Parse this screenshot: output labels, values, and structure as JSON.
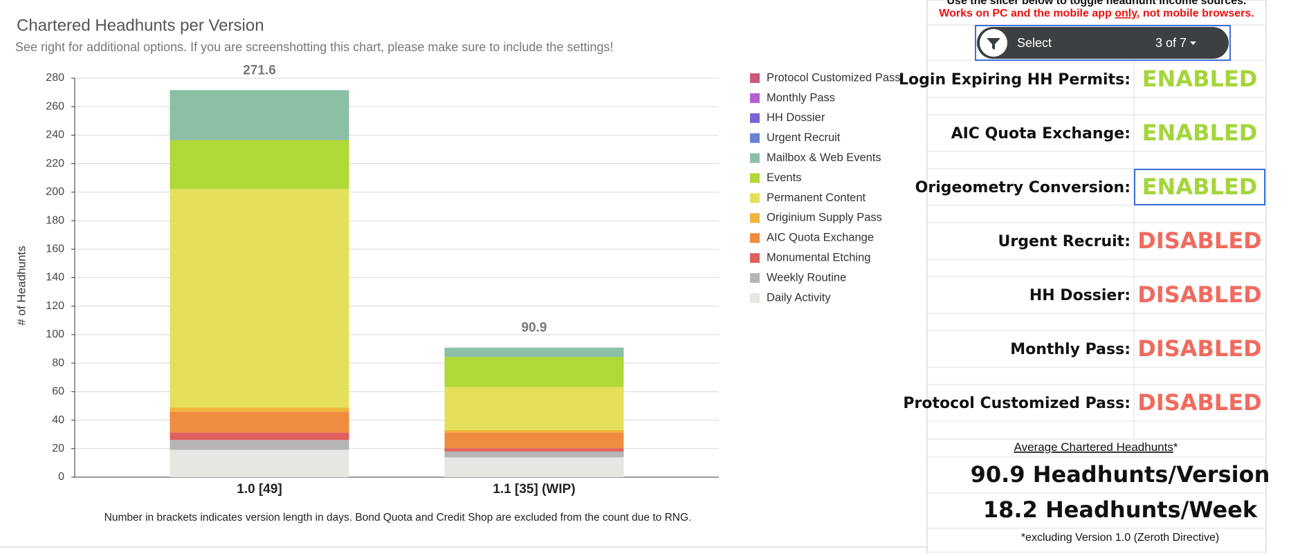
{
  "chart_data": {
    "type": "bar",
    "stacked": true,
    "title": "Chartered Headhunts per Version",
    "subtitle": "See right for additional options. If you are screenshotting this chart, please make sure to include the settings!",
    "y_label": "# of Headhunts",
    "footnote": "Number in brackets indicates version length in days. Bond Quota and Credit Shop are excluded from the count due to RNG.",
    "categories": [
      "1.0 [49]",
      "1.1 [35] (WIP)"
    ],
    "totals": [
      271.6,
      90.9
    ],
    "series": [
      {
        "name": "Daily Activity",
        "color": "#e6e7e3",
        "values": [
          19.2,
          13.9
        ]
      },
      {
        "name": "Weekly Routine",
        "color": "#b5b5b5",
        "values": [
          6.9,
          4.1
        ]
      },
      {
        "name": "Monumental Etching",
        "color": "#e0605f",
        "values": [
          5.3,
          2.3
        ]
      },
      {
        "name": "AIC Quota Exchange",
        "color": "#f08c3f",
        "values": [
          14.5,
          11.1
        ]
      },
      {
        "name": "Originium Supply Pass",
        "color": "#f0b43a",
        "values": [
          2.9,
          1.7
        ]
      },
      {
        "name": "Permanent Content",
        "color": "#e5e05b",
        "values": [
          153.4,
          30.2
        ]
      },
      {
        "name": "Events",
        "color": "#afd936",
        "values": [
          34.3,
          21.0
        ]
      },
      {
        "name": "Mailbox & Web Events",
        "color": "#8bbfa6",
        "values": [
          35.1,
          6.6
        ]
      },
      {
        "name": "Urgent Recruit",
        "color": "#6b80d1",
        "values": [
          0,
          0
        ]
      },
      {
        "name": "HH Dossier",
        "color": "#7b63d3",
        "values": [
          0,
          0
        ]
      },
      {
        "name": "Monthly Pass",
        "color": "#b35fd0",
        "values": [
          0,
          0
        ]
      },
      {
        "name": "Protocol Customized Pass",
        "color": "#c9587a",
        "values": [
          0,
          0
        ]
      }
    ],
    "ylim": [
      0,
      280
    ],
    "yticks": [
      0,
      20,
      40,
      60,
      80,
      100,
      120,
      140,
      160,
      180,
      200,
      220,
      240,
      260,
      280
    ],
    "grid": true,
    "legend": "right"
  },
  "settings_panel": {
    "instruction": "Use the slicer below to toggle headhunt income sources.",
    "warning_start": "Works on PC and the mobile app ",
    "warning_emphasis": "only",
    "warning_end": ", not mobile browsers.",
    "slicer": {
      "label": "Select",
      "count": "3 of 7"
    },
    "rows": [
      {
        "label": "Login Expiring HH Permits:",
        "status": "ENABLED",
        "color": "#a4d53a"
      },
      {
        "label": "AIC Quota Exchange:",
        "status": "ENABLED",
        "color": "#a4d53a"
      },
      {
        "label": "Origeometry Conversion:",
        "status": "ENABLED",
        "color": "#a4d53a"
      },
      {
        "label": "Urgent Recruit:",
        "status": "DISABLED",
        "color": "#f06b5e"
      },
      {
        "label": "HH Dossier:",
        "status": "DISABLED",
        "color": "#f06b5e"
      },
      {
        "label": "Monthly Pass:",
        "status": "DISABLED",
        "color": "#f06b5e"
      },
      {
        "label": "Protocol Customized Pass:",
        "status": "DISABLED",
        "color": "#f06b5e"
      }
    ],
    "average_heading": "Average Chartered Headhunts",
    "average_mark": "*",
    "per_version": "90.9 Headhunts/Version",
    "per_week": "18.2 Headhunts/Week",
    "average_note": "*excluding Version 1.0 (Zeroth Directive)"
  }
}
